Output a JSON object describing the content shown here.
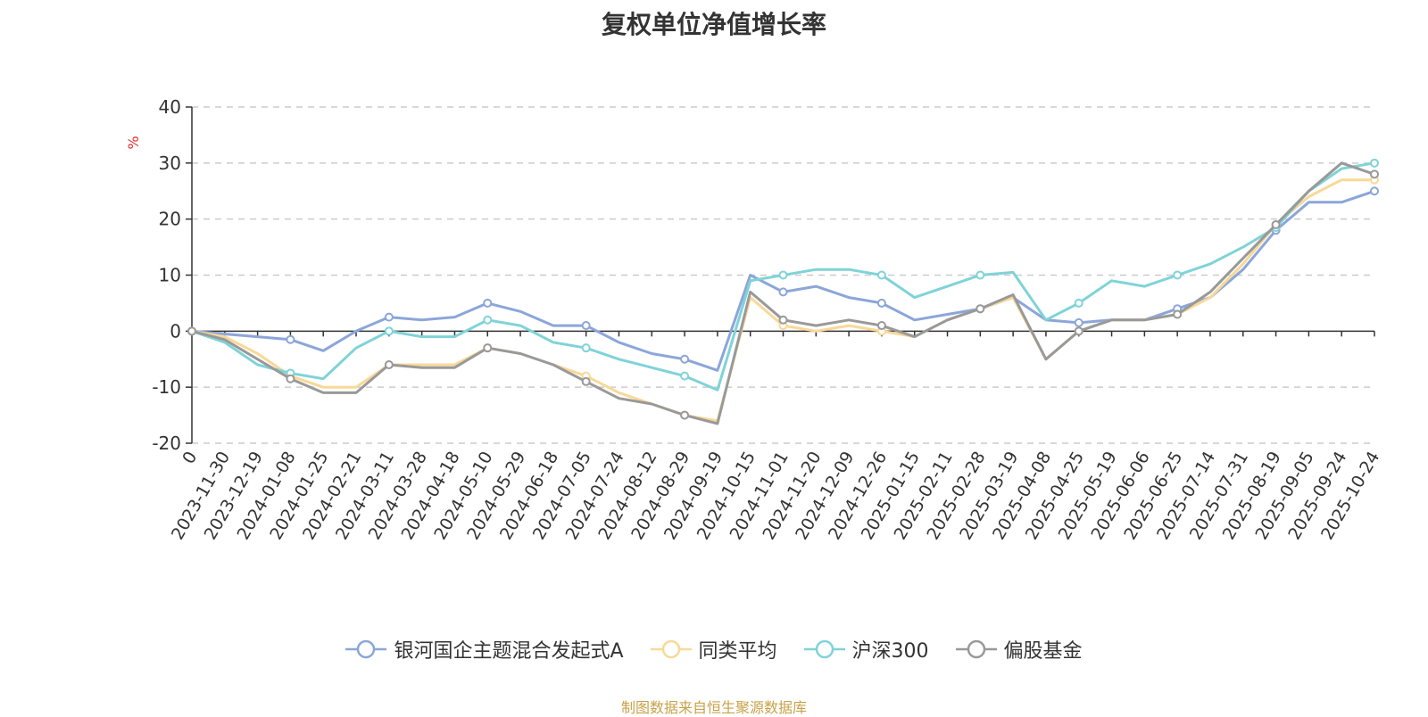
{
  "chart_data": {
    "type": "line",
    "title": "复权单位净值增长率",
    "ylabel": "%",
    "xlabel": "",
    "ylim": [
      -20,
      40
    ],
    "yticks": [
      -20,
      -10,
      0,
      10,
      20,
      30,
      40
    ],
    "grid": true,
    "legend_position": "bottom",
    "source": "制图数据来自恒生聚源数据库",
    "x": [
      "0",
      "2023-11-30",
      "2023-12-19",
      "2024-01-08",
      "2024-01-25",
      "2024-02-21",
      "2024-03-11",
      "2024-03-28",
      "2024-04-18",
      "2024-05-10",
      "2024-05-29",
      "2024-06-18",
      "2024-07-05",
      "2024-07-24",
      "2024-08-12",
      "2024-08-29",
      "2024-09-19",
      "2024-10-15",
      "2024-11-01",
      "2024-11-20",
      "2024-12-09",
      "2024-12-26",
      "2025-01-15",
      "2025-02-11",
      "2025-02-28",
      "2025-03-19",
      "2025-04-08",
      "2025-04-25",
      "2025-05-19",
      "2025-06-06",
      "2025-06-25",
      "2025-07-14",
      "2025-07-31",
      "2025-08-19",
      "2025-09-05",
      "2025-09-24",
      "2025-10-24"
    ],
    "series": [
      {
        "name": "银河国企主题混合发起式A",
        "color": "#8ba6d9",
        "values": [
          0,
          -0.5,
          -1.0,
          -1.5,
          -3.5,
          0,
          2.5,
          2.0,
          2.5,
          5.0,
          3.5,
          1.0,
          1.0,
          -2.0,
          -4.0,
          -5.0,
          -7.0,
          10.0,
          7.0,
          8.0,
          6.0,
          5.0,
          2.0,
          3.0,
          4.0,
          6.0,
          2.0,
          1.5,
          2.0,
          2.0,
          4.0,
          6.0,
          11.0,
          18.0,
          23.0,
          23.0,
          25.0
        ]
      },
      {
        "name": "同类平均",
        "color": "#f9d898",
        "values": [
          0,
          -1.0,
          -4.0,
          -8.0,
          -10.0,
          -10.0,
          -6.0,
          -6.0,
          -6.0,
          -3.0,
          -4.0,
          -6.0,
          -8.0,
          -11.0,
          -13.0,
          -15.0,
          -16.0,
          6.0,
          1.0,
          0.0,
          1.0,
          0.0,
          -1.0,
          2.0,
          4.0,
          6.0,
          -5.0,
          0.0,
          2.0,
          2.0,
          3.0,
          6.0,
          12.0,
          19.0,
          24.0,
          27.0,
          27.0
        ]
      },
      {
        "name": "沪深300",
        "color": "#7fd3d8",
        "values": [
          0,
          -2.0,
          -6.0,
          -7.5,
          -8.5,
          -3.0,
          0,
          -1.0,
          -1.0,
          2.0,
          1.0,
          -2.0,
          -3.0,
          -5.0,
          -6.5,
          -8.0,
          -10.5,
          9.0,
          10.0,
          11.0,
          11.0,
          10.0,
          6.0,
          8.0,
          10.0,
          10.5,
          2.0,
          5.0,
          9.0,
          8.0,
          10.0,
          12.0,
          15.0,
          18.5,
          25.0,
          29.0,
          30.0
        ]
      },
      {
        "name": "偏股基金",
        "color": "#999999",
        "values": [
          0,
          -1.5,
          -5.0,
          -8.5,
          -11.0,
          -11.0,
          -6.0,
          -6.5,
          -6.5,
          -3.0,
          -4.0,
          -6.0,
          -9.0,
          -12.0,
          -13.0,
          -15.0,
          -16.5,
          7.0,
          2.0,
          1.0,
          2.0,
          1.0,
          -1.0,
          2.0,
          4.0,
          6.5,
          -5.0,
          0.0,
          2.0,
          2.0,
          3.0,
          7.0,
          13.0,
          19.0,
          25.0,
          30.0,
          28.0
        ]
      }
    ]
  }
}
